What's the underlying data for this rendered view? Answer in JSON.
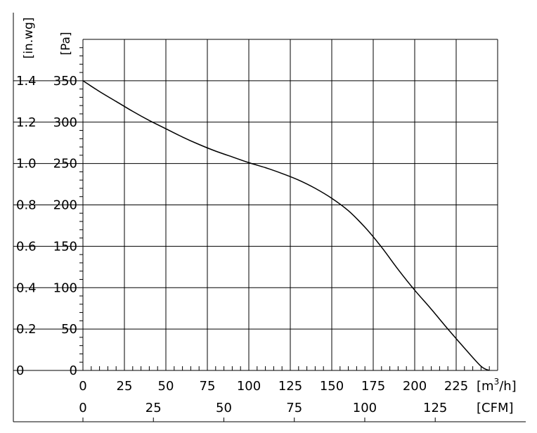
{
  "chart_data": {
    "type": "line",
    "title": "",
    "x_axis": {
      "label": "[m³/h]",
      "label_base": "[m",
      "label_sup": "3",
      "label_tail": "/h]",
      "min": 0,
      "max": 250,
      "grid_step": 25,
      "ticks": [
        "0",
        "25",
        "50",
        "75",
        "100",
        "125",
        "150",
        "175",
        "200",
        "225"
      ]
    },
    "x2_axis": {
      "label": "[CFM]",
      "ticks": [
        {
          "value": 0,
          "label": "0"
        },
        {
          "value": 25,
          "label": "25"
        },
        {
          "value": 50,
          "label": "50"
        },
        {
          "value": 75,
          "label": "75"
        },
        {
          "value": 100,
          "label": "100"
        },
        {
          "value": 125,
          "label": "125"
        }
      ]
    },
    "y_axis": {
      "label": "[Pa]",
      "min": 0,
      "max": 400,
      "grid_step": 50,
      "ticks": [
        "0",
        "50",
        "100",
        "150",
        "200",
        "250",
        "300",
        "350"
      ]
    },
    "y2_axis": {
      "label": "[in.wg]",
      "ticks": [
        {
          "value": 0,
          "label": "0"
        },
        {
          "value": 0.2,
          "label": "0.2"
        },
        {
          "value": 0.4,
          "label": "0.4"
        },
        {
          "value": 0.6,
          "label": "0.6"
        },
        {
          "value": 0.8,
          "label": "0.8"
        },
        {
          "value": 1.0,
          "label": "1.0"
        },
        {
          "value": 1.2,
          "label": "1.2"
        },
        {
          "value": 1.4,
          "label": "1.4"
        }
      ]
    },
    "grid": true,
    "series": [
      {
        "x": [
          0,
          10,
          20,
          30,
          40,
          50,
          60,
          70,
          80,
          90,
          100,
          110,
          120,
          130,
          140,
          150,
          160,
          170,
          180,
          190,
          200,
          210,
          220,
          230,
          240,
          245
        ],
        "y": [
          350,
          337,
          325,
          313,
          302,
          292,
          282,
          273,
          265,
          258,
          251,
          245,
          238,
          230,
          220,
          208,
          193,
          173,
          149,
          122,
          97,
          74,
          50,
          27,
          5,
          0
        ]
      }
    ]
  }
}
